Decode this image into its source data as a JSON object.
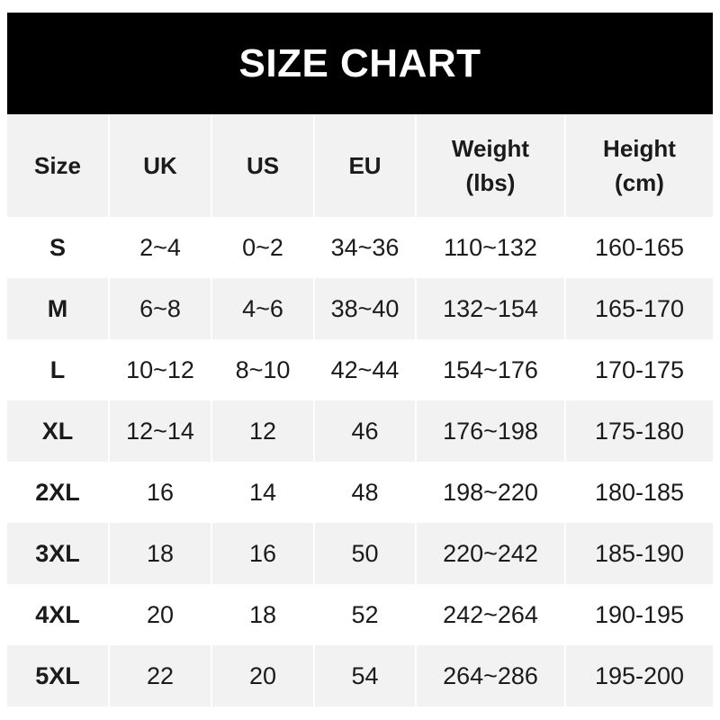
{
  "title": "SIZE CHART",
  "columns": [
    {
      "line1": "Size",
      "line2": ""
    },
    {
      "line1": "UK",
      "line2": ""
    },
    {
      "line1": "US",
      "line2": ""
    },
    {
      "line1": "EU",
      "line2": ""
    },
    {
      "line1": "Weight",
      "line2": "(lbs)"
    },
    {
      "line1": "Height",
      "line2": "(cm)"
    }
  ],
  "rows": [
    [
      "S",
      "2~4",
      "0~2",
      "34~36",
      "110~132",
      "160-165"
    ],
    [
      "M",
      "6~8",
      "4~6",
      "38~40",
      "132~154",
      "165-170"
    ],
    [
      "L",
      "10~12",
      "8~10",
      "42~44",
      "154~176",
      "170-175"
    ],
    [
      "XL",
      "12~14",
      "12",
      "46",
      "176~198",
      "175-180"
    ],
    [
      "2XL",
      "16",
      "14",
      "48",
      "198~220",
      "180-185"
    ],
    [
      "3XL",
      "18",
      "16",
      "50",
      "220~242",
      "185-190"
    ],
    [
      "4XL",
      "20",
      "18",
      "52",
      "242~264",
      "190-195"
    ],
    [
      "5XL",
      "22",
      "20",
      "54",
      "264~286",
      "195-200"
    ]
  ],
  "colors": {
    "title_bg": "#000000",
    "stripe": "#f2f2f2",
    "text": "#1b1b1b"
  }
}
